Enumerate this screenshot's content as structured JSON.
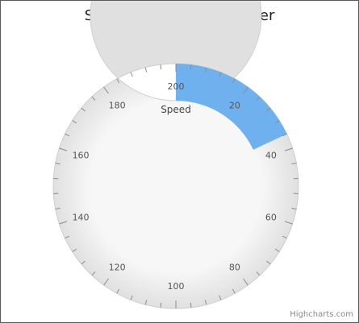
{
  "chart_data": {
    "type": "solidgauge",
    "title": "Solid Gauge Speedometer",
    "series": [
      {
        "name": "Speed",
        "values": [
          36
        ]
      }
    ],
    "axis": {
      "min": 0,
      "max": 200,
      "start_angle_deg": 0,
      "end_angle_deg": 360,
      "major_tick_interval": 20,
      "minor_tick_interval": 4,
      "tick_labels": [
        "20",
        "40",
        "60",
        "80",
        "100",
        "120",
        "140",
        "160",
        "180",
        "200"
      ]
    },
    "colors": {
      "band": "#6fb1ee",
      "track_outer": "#f5f5f5",
      "track_inner": "#d9d9d9",
      "ticks": "#8c8c8c"
    },
    "credits": "Highcharts.com"
  }
}
